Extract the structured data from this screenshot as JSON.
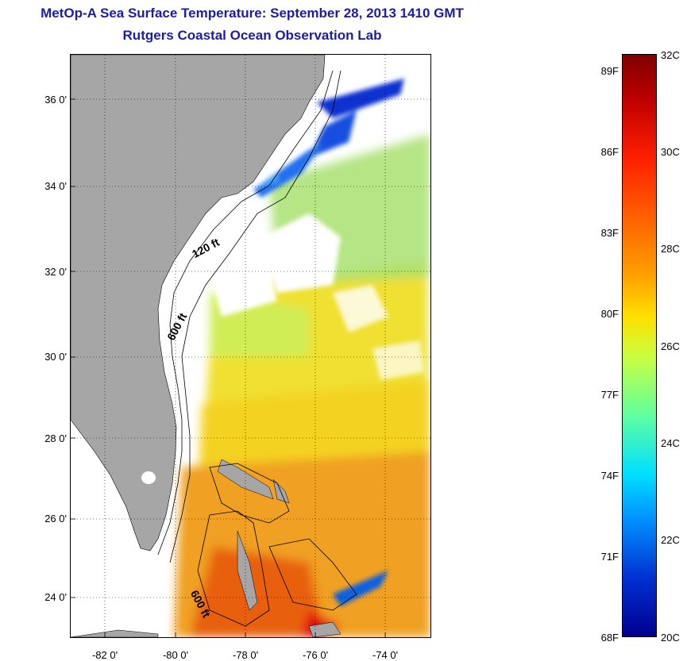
{
  "title": {
    "line1": "MetOp-A Sea Surface Temperature:  September 28, 2013 1410 GMT",
    "line2": "Rutgers Coastal Ocean Observation Lab"
  },
  "map": {
    "y_ticks": [
      "36 0'",
      "34 0'",
      "32 0'",
      "30 0'",
      "28 0'",
      "26 0'",
      "24 0'"
    ],
    "x_ticks": [
      "-82 0'",
      "-80 0'",
      "-78 0'",
      "-76 0'",
      "-74 0'"
    ],
    "contour_labels": [
      "120 ft",
      "600 ft",
      "600 ft"
    ]
  },
  "colorbar": {
    "fahrenheit": [
      "89F",
      "86F",
      "83F",
      "80F",
      "77F",
      "74F",
      "71F",
      "68F"
    ],
    "celsius": [
      "32C",
      "30C",
      "28C",
      "26C",
      "24C",
      "22C",
      "20C"
    ],
    "colors": [
      "#7f0000",
      "#ff2000",
      "#ffa000",
      "#ffe000",
      "#60ffa0",
      "#00e0ff",
      "#0030d0",
      "#000090"
    ]
  }
}
